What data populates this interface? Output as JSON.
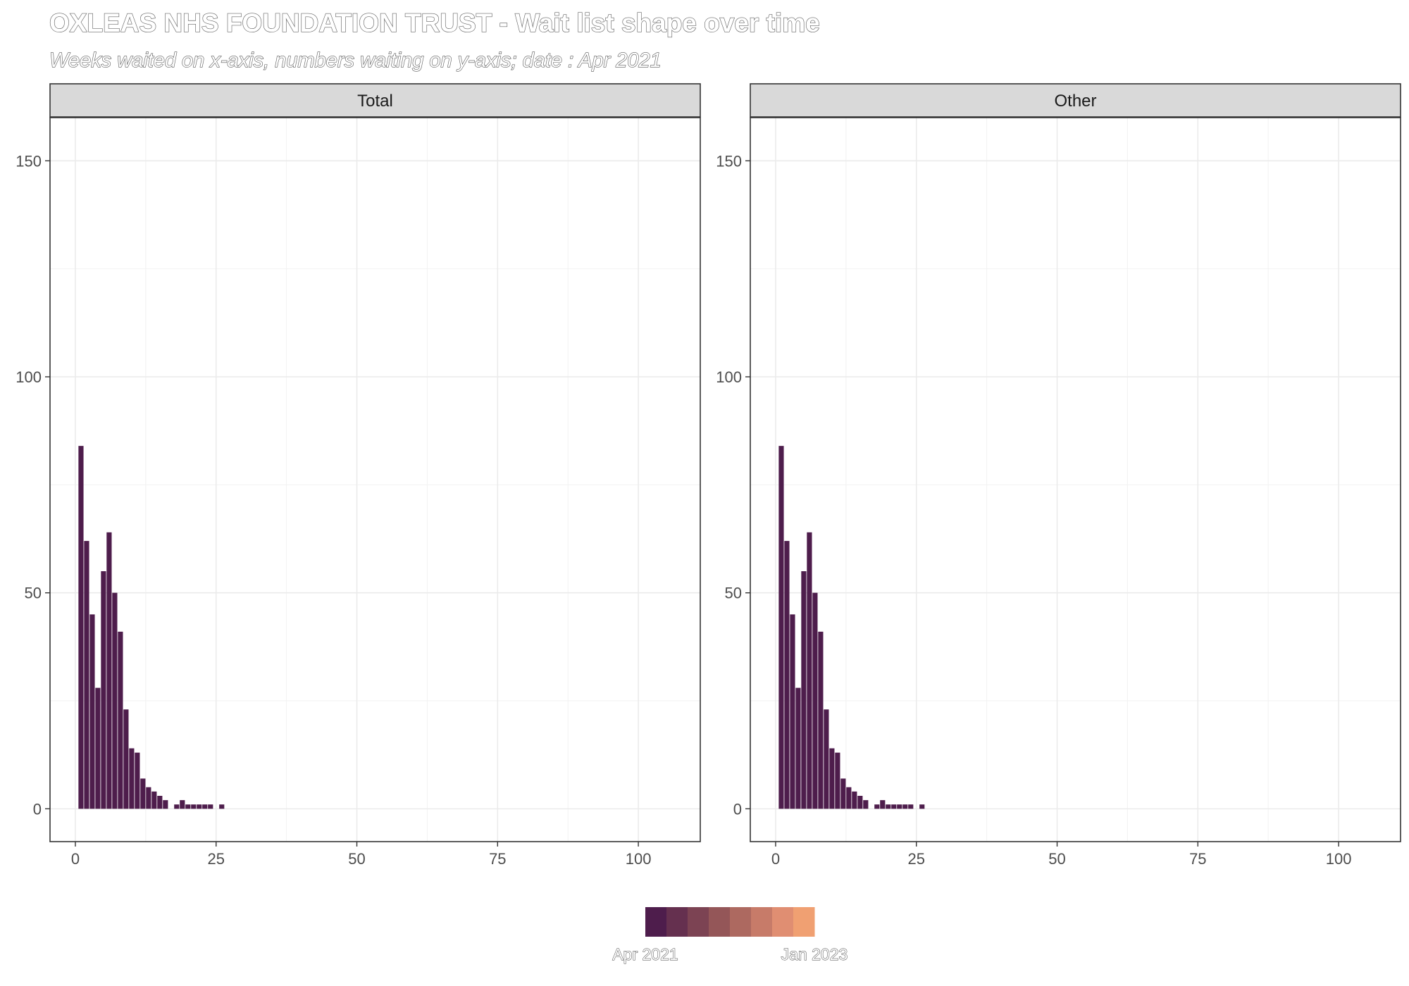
{
  "chart_data": {
    "type": "bar",
    "title": "OXLEAS NHS FOUNDATION TRUST - Wait list shape over time",
    "subtitle": "Weeks waited on x-axis, numbers waiting on y-axis; date : Apr 2021",
    "xlabel": "",
    "ylabel": "",
    "xlim": [
      -4.5,
      111
    ],
    "ylim": [
      -7.6,
      160
    ],
    "x_ticks": [
      0,
      25,
      50,
      75,
      100
    ],
    "y_ticks": [
      0,
      50,
      100,
      150
    ],
    "grid": true,
    "bar_color": "#4E1D4C",
    "facets": [
      {
        "label": "Total",
        "series": [
          {
            "x": [
              1,
              2,
              3,
              4,
              5,
              6,
              7,
              8,
              9,
              10,
              11,
              12,
              13,
              14,
              15,
              16,
              17,
              18,
              19,
              20,
              21,
              22,
              23,
              24,
              25,
              26
            ],
            "values": [
              84,
              62,
              45,
              28,
              55,
              64,
              50,
              41,
              23,
              14,
              13,
              7,
              5,
              4,
              3,
              2,
              0,
              1,
              2,
              1,
              1,
              1,
              1,
              1,
              0,
              1
            ]
          }
        ]
      },
      {
        "label": "Other",
        "series": [
          {
            "x": [
              1,
              2,
              3,
              4,
              5,
              6,
              7,
              8,
              9,
              10,
              11,
              12,
              13,
              14,
              15,
              16,
              17,
              18,
              19,
              20,
              21,
              22,
              23,
              24,
              25,
              26
            ],
            "values": [
              84,
              62,
              45,
              28,
              55,
              64,
              50,
              41,
              23,
              14,
              13,
              7,
              5,
              4,
              3,
              2,
              0,
              1,
              2,
              1,
              1,
              1,
              1,
              1,
              0,
              1
            ]
          }
        ]
      }
    ],
    "legend": {
      "placement": "bottom",
      "colors": [
        "#4E1D4C",
        "#65304F",
        "#7C4353",
        "#945658",
        "#AD6960",
        "#C77B69",
        "#E08E72",
        "#F0A072"
      ],
      "labels": [
        "Apr 2021",
        "Jan 2023"
      ]
    }
  }
}
